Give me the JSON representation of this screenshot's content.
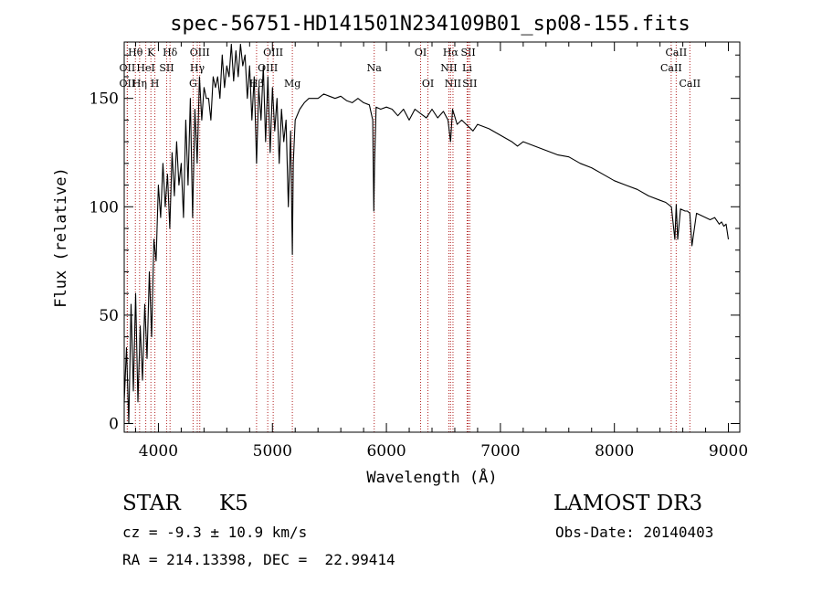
{
  "chart_data": {
    "type": "line",
    "title": "spec-56751-HD141501N234109B01_sp08-155.fits",
    "xlabel": "Wavelength (Å)",
    "ylabel": "Flux (relative)",
    "xlim": [
      3700,
      9100
    ],
    "ylim": [
      -4,
      176
    ],
    "x_ticks": [
      4000,
      5000,
      6000,
      7000,
      8000,
      9000
    ],
    "y_ticks": [
      0,
      50,
      100,
      150
    ],
    "grid": false,
    "series": [
      {
        "x": [
          3700,
          3720,
          3740,
          3760,
          3780,
          3800,
          3820,
          3840,
          3860,
          3880,
          3900,
          3920,
          3940,
          3960,
          3980,
          4000,
          4020,
          4040,
          4060,
          4080,
          4100,
          4120,
          4140,
          4160,
          4180,
          4200,
          4220,
          4240,
          4260,
          4280,
          4300,
          4320,
          4340,
          4360,
          4380,
          4400,
          4420,
          4440,
          4460,
          4480,
          4500,
          4520,
          4540,
          4560,
          4580,
          4600,
          4620,
          4640,
          4660,
          4680,
          4700,
          4720,
          4740,
          4760,
          4780,
          4800,
          4820,
          4840,
          4861,
          4880,
          4900,
          4920,
          4940,
          4960,
          4980,
          5000,
          5020,
          5040,
          5060,
          5080,
          5100,
          5120,
          5140,
          5160,
          5175,
          5183,
          5200,
          5240,
          5280,
          5320,
          5360,
          5400,
          5450,
          5500,
          5550,
          5600,
          5650,
          5700,
          5750,
          5800,
          5850,
          5880,
          5890,
          5896,
          5910,
          5950,
          6000,
          6050,
          6100,
          6150,
          6200,
          6250,
          6300,
          6350,
          6400,
          6450,
          6500,
          6540,
          6563,
          6580,
          6620,
          6660,
          6700,
          6760,
          6800,
          6850,
          6900,
          7000,
          7100,
          7150,
          7200,
          7300,
          7400,
          7500,
          7600,
          7700,
          7800,
          7900,
          8000,
          8100,
          8200,
          8300,
          8400,
          8450,
          8500,
          8530,
          8542,
          8555,
          8580,
          8620,
          8640,
          8662,
          8680,
          8720,
          8760,
          8800,
          8840,
          8880,
          8920,
          8940,
          8960,
          8980,
          9000
        ],
        "values": [
          10,
          35,
          0,
          55,
          15,
          60,
          10,
          45,
          20,
          55,
          30,
          70,
          40,
          85,
          75,
          110,
          95,
          120,
          100,
          115,
          90,
          125,
          105,
          130,
          110,
          120,
          95,
          140,
          110,
          150,
          95,
          145,
          120,
          160,
          140,
          155,
          150,
          150,
          140,
          160,
          155,
          160,
          150,
          170,
          155,
          165,
          160,
          175,
          158,
          172,
          160,
          175,
          165,
          170,
          150,
          165,
          140,
          160,
          120,
          155,
          140,
          165,
          130,
          160,
          125,
          155,
          135,
          150,
          120,
          145,
          130,
          140,
          100,
          135,
          78,
          120,
          140,
          145,
          148,
          150,
          150,
          150,
          152,
          151,
          150,
          151,
          149,
          148,
          150,
          148,
          147,
          140,
          98,
          120,
          146,
          145,
          146,
          145,
          142,
          145,
          140,
          145,
          143,
          141,
          145,
          141,
          144,
          140,
          130,
          145,
          138,
          140,
          138,
          135,
          138,
          137,
          136,
          133,
          130,
          128,
          130,
          128,
          126,
          124,
          123,
          120,
          118,
          115,
          112,
          110,
          108,
          105,
          103,
          102,
          100,
          85,
          101,
          85,
          99,
          98,
          98,
          97,
          82,
          97,
          96,
          95,
          94,
          95,
          92,
          93,
          91,
          92,
          85
        ]
      }
    ],
    "line_markers": [
      {
        "label": "Hθ",
        "x": 3798,
        "row": 1
      },
      {
        "label": "K",
        "x": 3934,
        "row": 1
      },
      {
        "label": "Hδ",
        "x": 4102,
        "row": 1
      },
      {
        "label": "OII",
        "x": 3727,
        "row": 2
      },
      {
        "label": "HeI",
        "x": 3889,
        "row": 2
      },
      {
        "label": "SII",
        "x": 4072,
        "row": 2
      },
      {
        "label": "OII",
        "x": 3727,
        "row": 3
      },
      {
        "label": "Hη",
        "x": 3835,
        "row": 3
      },
      {
        "label": "H",
        "x": 3969,
        "row": 3
      },
      {
        "label": "OIII",
        "x": 4363,
        "row": 1
      },
      {
        "label": "Hγ",
        "x": 4341,
        "row": 2
      },
      {
        "label": "G",
        "x": 4304,
        "row": 3
      },
      {
        "label": "OIII",
        "x": 5007,
        "row": 1
      },
      {
        "label": "OIII",
        "x": 4959,
        "row": 2
      },
      {
        "label": "Hβ",
        "x": 4861,
        "row": 3
      },
      {
        "label": "Mg",
        "x": 5175,
        "row": 3
      },
      {
        "label": "Na",
        "x": 5893,
        "row": 2
      },
      {
        "label": "OI",
        "x": 6300,
        "row": 1
      },
      {
        "label": "OI",
        "x": 6364,
        "row": 3
      },
      {
        "label": "Hα",
        "x": 6563,
        "row": 1
      },
      {
        "label": "SII",
        "x": 6717,
        "row": 1
      },
      {
        "label": "NII",
        "x": 6548,
        "row": 2
      },
      {
        "label": "Li",
        "x": 6708,
        "row": 2
      },
      {
        "label": "NII",
        "x": 6584,
        "row": 3
      },
      {
        "label": "SII",
        "x": 6731,
        "row": 3
      },
      {
        "label": "CaII",
        "x": 8542,
        "row": 1
      },
      {
        "label": "CaII",
        "x": 8498,
        "row": 2
      },
      {
        "label": "CaII",
        "x": 8662,
        "row": 3
      }
    ]
  },
  "info": {
    "object_type": "STAR",
    "subclass": "K5",
    "survey": "LAMOST DR3",
    "redshift_line": "cz = -9.3 ± 10.9 km/s",
    "obs_date_line": "Obs-Date: 20140403",
    "coords_line": "RA = 214.13398, DEC =  22.99414"
  },
  "colors": {
    "spectrum": "#000000",
    "marker_lines": "#b22222",
    "axes": "#000000",
    "background": "#ffffff"
  }
}
